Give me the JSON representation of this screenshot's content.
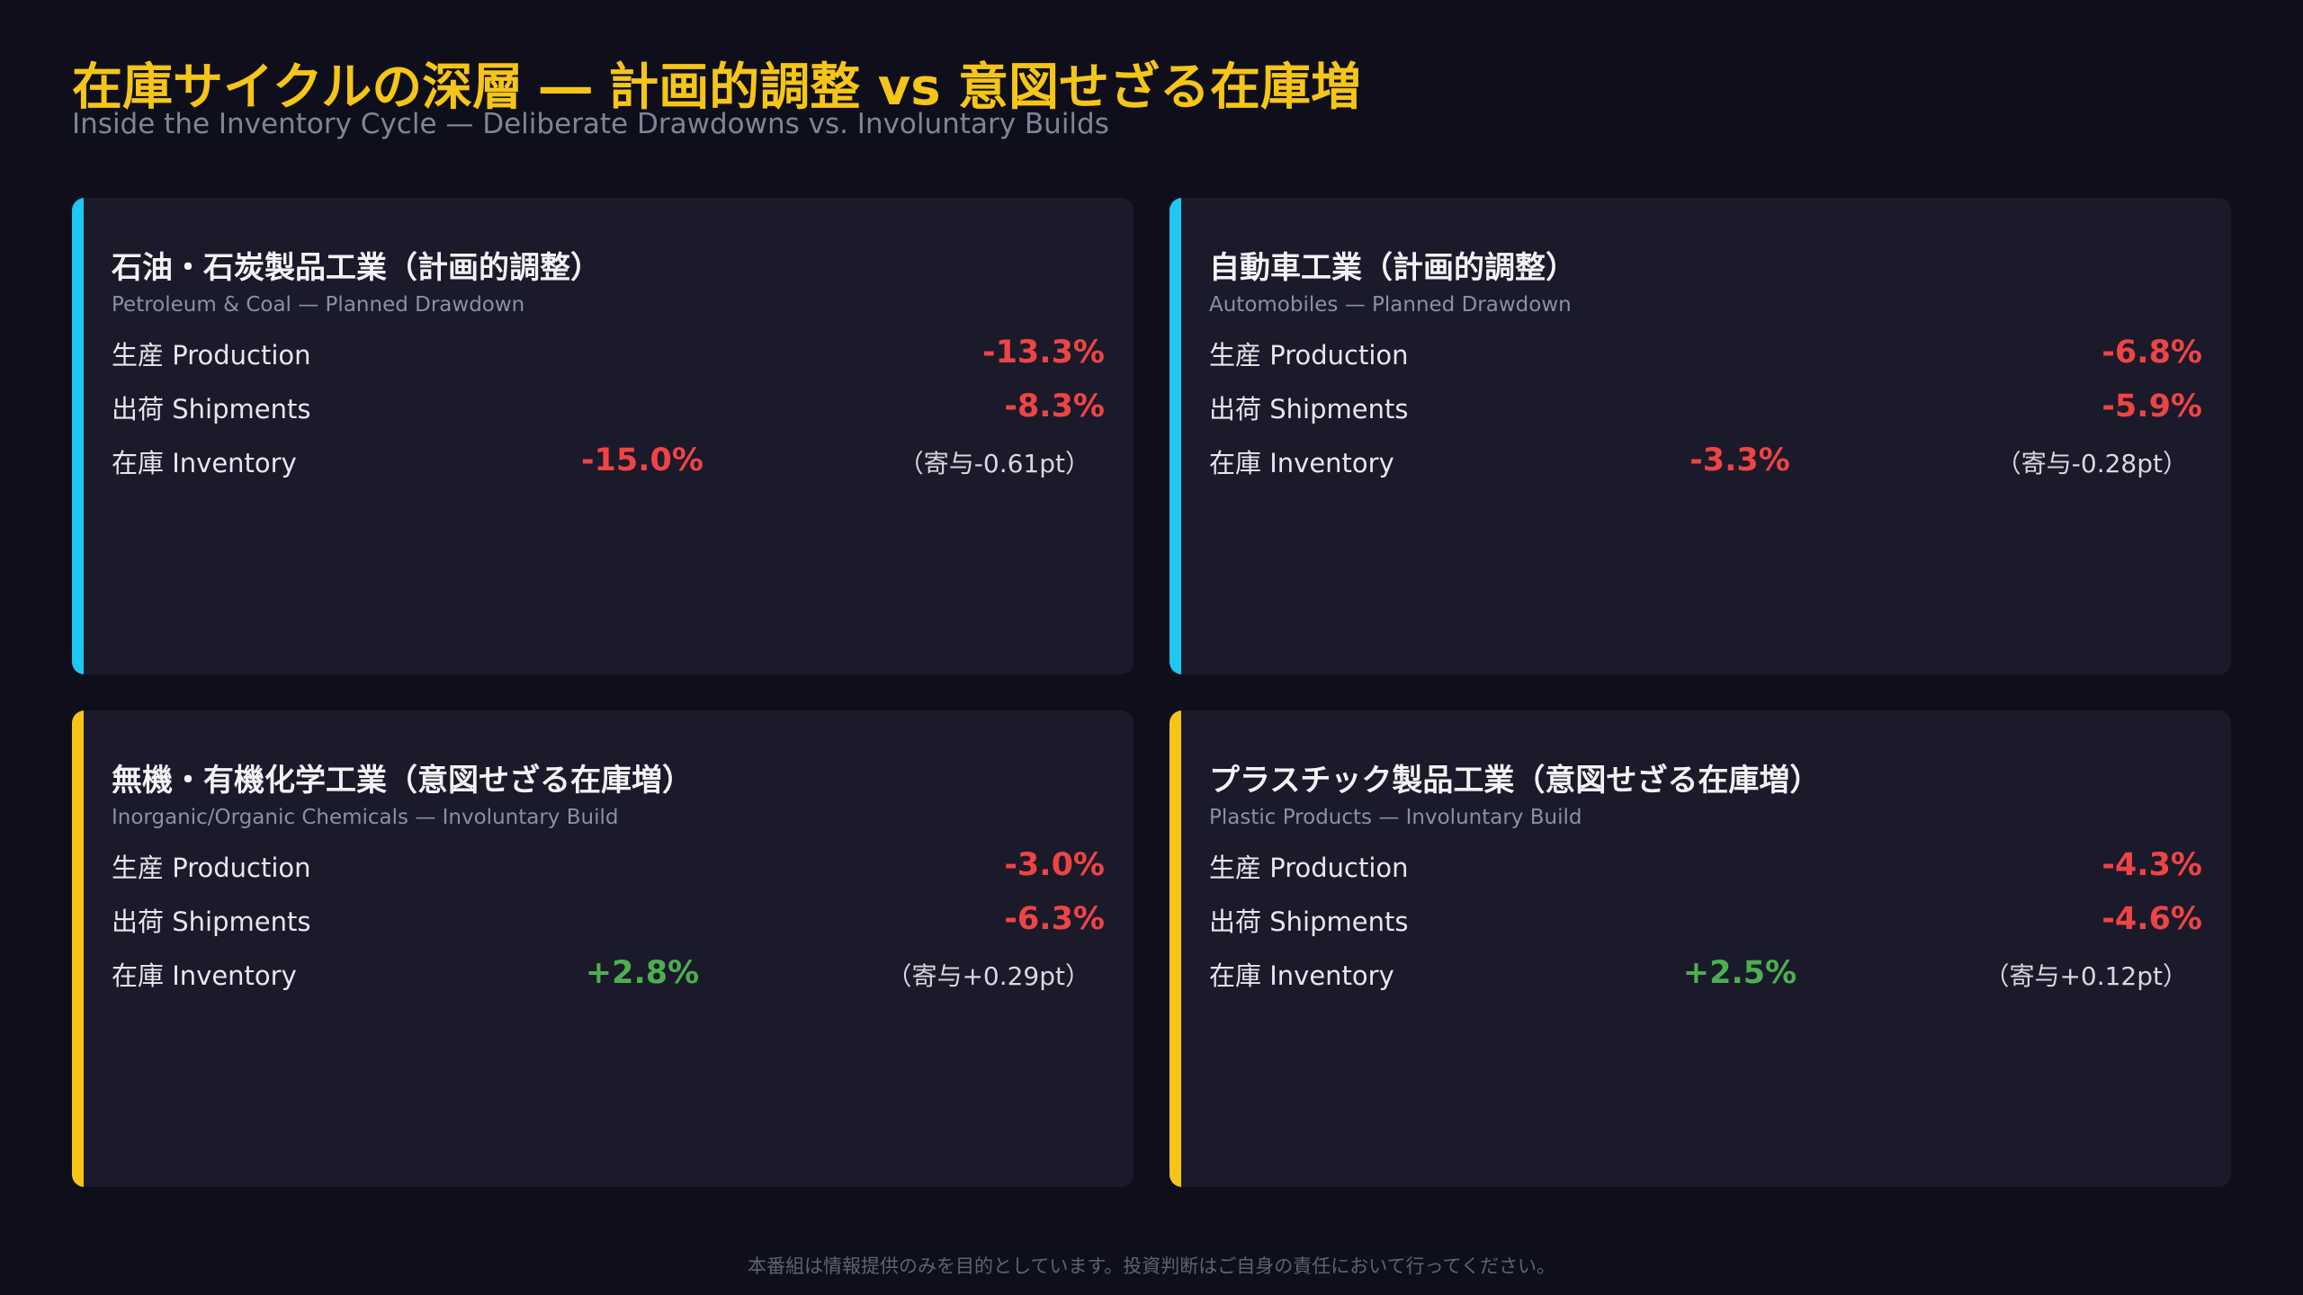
{
  "header": {
    "title": "在庫サイクルの深層 ― 計画的調整 vs 意図せざる在庫増",
    "subtitle": "Inside the Inventory Cycle — Deliberate Drawdowns vs. Involuntary Builds"
  },
  "colors": {
    "planned_accent": "#1ec8f0",
    "involuntary_accent": "#f5c518",
    "negative": "#ef4444",
    "positive": "#4caf50"
  },
  "cards": [
    {
      "title": "石油・石炭製品工業（計画的調整）",
      "subtitle": "Petroleum & Coal — Planned Drawdown",
      "production_label": "生産 Production",
      "production_value": "-13.3%",
      "shipments_label": "出荷 Shipments",
      "shipments_value": "-8.3%",
      "inventory_label": "在庫 Inventory",
      "inventory_value": "-15.0%",
      "contribution": "（寄与-0.61pt）"
    },
    {
      "title": "自動車工業（計画的調整）",
      "subtitle": "Automobiles — Planned Drawdown",
      "production_label": "生産 Production",
      "production_value": "-6.8%",
      "shipments_label": "出荷 Shipments",
      "shipments_value": "-5.9%",
      "inventory_label": "在庫 Inventory",
      "inventory_value": "-3.3%",
      "contribution": "（寄与-0.28pt）"
    },
    {
      "title": "無機・有機化学工業（意図せざる在庫増）",
      "subtitle": "Inorganic/Organic Chemicals — Involuntary Build",
      "production_label": "生産 Production",
      "production_value": "-3.0%",
      "shipments_label": "出荷 Shipments",
      "shipments_value": "-6.3%",
      "inventory_label": "在庫 Inventory",
      "inventory_value": "+2.8%",
      "contribution": "（寄与+0.29pt）"
    },
    {
      "title": "プラスチック製品工業（意図せざる在庫増）",
      "subtitle": "Plastic Products — Involuntary Build",
      "production_label": "生産 Production",
      "production_value": "-4.3%",
      "shipments_label": "出荷 Shipments",
      "shipments_value": "-4.6%",
      "inventory_label": "在庫 Inventory",
      "inventory_value": "+2.5%",
      "contribution": "（寄与+0.12pt）"
    }
  ],
  "footer": {
    "disclaimer": "本番組は情報提供のみを目的としています。投資判断はご自身の責任において行ってください。"
  }
}
